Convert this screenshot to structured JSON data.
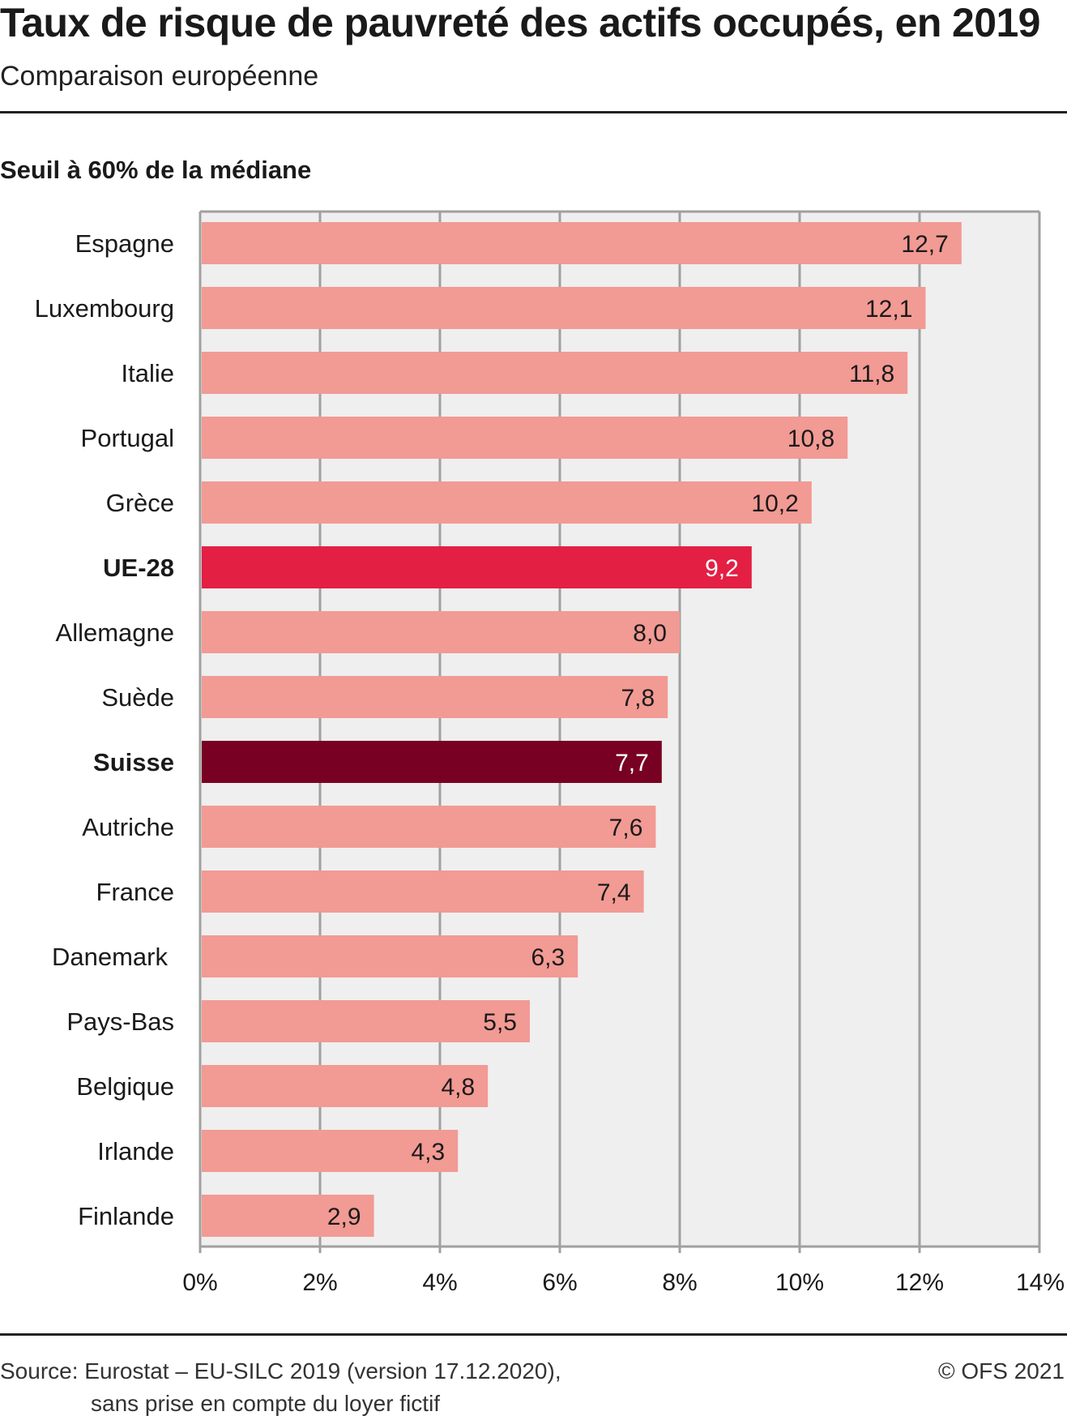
{
  "header": {
    "title": "Taux de risque de pauvreté des actifs occupés, en 2019",
    "subtitle": "Comparaison européenne",
    "section_title": "Seuil à 60% de la médiane"
  },
  "footer": {
    "source_line1": "Source: Eurostat – EU-SILC 2019 (version 17.12.2020),",
    "source_line2": "sans prise en compte du loyer fictif",
    "copyright": "© OFS 2021"
  },
  "colors": {
    "bar_default": "#F29A94",
    "bar_eu": "#E31F44",
    "bar_switzerland": "#780022",
    "plot_background": "#EFEFEF",
    "grid": "#A0A0A0"
  },
  "chart_data": {
    "type": "bar",
    "orientation": "horizontal",
    "title": "Taux de risque de pauvreté des actifs occupés, en 2019",
    "subtitle": "Comparaison européenne",
    "panel_title": "Seuil à 60% de la médiane",
    "xlabel": "",
    "ylabel": "",
    "xlim": [
      0,
      14
    ],
    "x_ticks": [
      0,
      2,
      4,
      6,
      8,
      10,
      12,
      14
    ],
    "x_tick_labels": [
      "0%",
      "2%",
      "4%",
      "6%",
      "8%",
      "10%",
      "12%",
      "14%"
    ],
    "grid": true,
    "legend": "none",
    "categories": [
      "Espagne",
      "Luxembourg",
      "Italie",
      "Portugal",
      "Grèce",
      "UE-28",
      "Allemagne",
      "Suède",
      "Suisse",
      "Autriche",
      "France",
      "Danemark ",
      "Pays-Bas",
      "Belgique",
      "Irlande",
      "Finlande"
    ],
    "values": [
      12.7,
      12.1,
      11.8,
      10.8,
      10.2,
      9.2,
      8.0,
      7.8,
      7.7,
      7.6,
      7.4,
      6.3,
      5.5,
      4.8,
      4.3,
      2.9
    ],
    "value_labels": [
      "12,7",
      "12,1",
      "11,8",
      "10,8",
      "10,2",
      "9,2",
      "8,0",
      "7,8",
      "7,7",
      "7,6",
      "7,4",
      "6,3",
      "5,5",
      "4,8",
      "4,3",
      "2,9"
    ],
    "highlight": {
      "UE-28": "eu",
      "Suisse": "switzerland"
    }
  }
}
